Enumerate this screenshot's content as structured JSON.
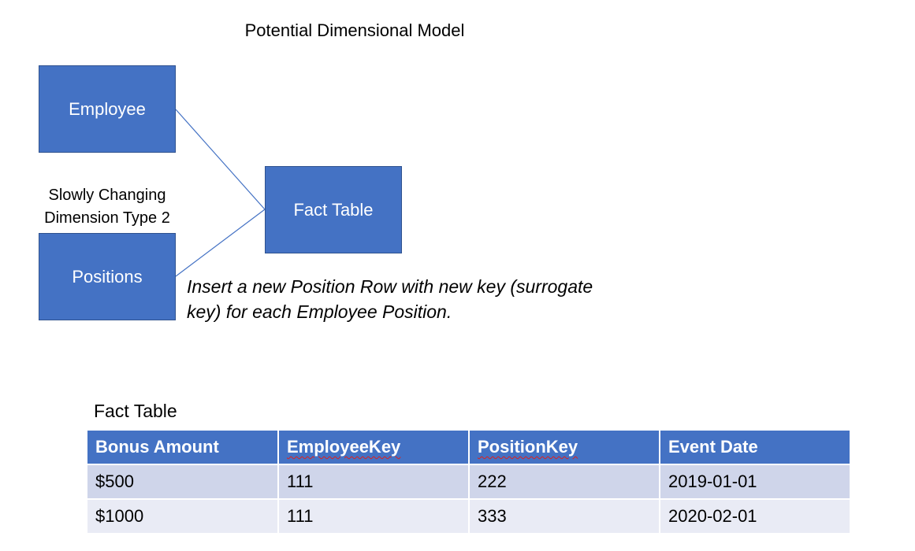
{
  "diagram": {
    "title": "Potential Dimensional Model",
    "nodes": {
      "employee": "Employee",
      "positions": "Positions",
      "fact": "Fact Table"
    },
    "edges": [
      {
        "from": "employee",
        "to": "fact"
      },
      {
        "from": "positions",
        "to": "fact"
      }
    ],
    "scd_label_line1": "Slowly Changing",
    "scd_label_line2": "Dimension Type 2",
    "note_line1": "Insert a new Position Row with new key (surrogate",
    "note_line2": "key) for each Employee Position.",
    "colors": {
      "box_fill": "#4472c4",
      "box_border": "#2f528f",
      "connector": "#4472c4"
    }
  },
  "fact_table": {
    "caption": "Fact Table",
    "headers": [
      "Bonus Amount",
      "EmployeeKey",
      "PositionKey",
      "Event Date"
    ],
    "rows": [
      [
        "$500",
        "111",
        "222",
        "2019-01-01"
      ],
      [
        "$1000",
        "111",
        "333",
        "2020-02-01"
      ]
    ],
    "colors": {
      "header": "#4472c4",
      "row_odd": "#cfd5ea",
      "row_even": "#e9ebf5"
    }
  }
}
